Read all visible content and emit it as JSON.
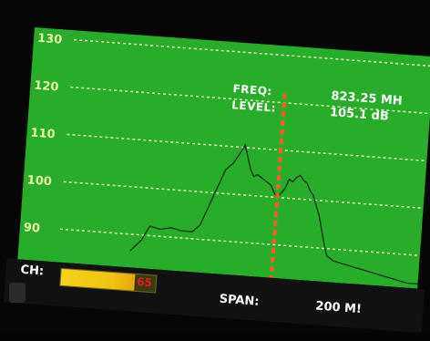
{
  "readout": {
    "freq_label": "FREQ:",
    "level_label": "LEVEL:",
    "freq_value": "823.25 MH",
    "level_value": "105.1 dB"
  },
  "channel": {
    "label": "CH:",
    "value": "65",
    "meter_fraction": 0.78
  },
  "span": {
    "label": "SPAN:",
    "value": "200 M!"
  },
  "colors": {
    "plot_background": "#27ad2a",
    "grid": "#f3f7c8",
    "trace": "#0b2a10",
    "marker": "#ff5a2a",
    "channel_meter": "#f3d21a",
    "channel_value": "#e21d1d"
  },
  "chart_data": {
    "type": "line",
    "title": "",
    "xlabel": "",
    "ylabel": "",
    "y_ticks": [
      "130",
      "120",
      "110",
      "100",
      "90"
    ],
    "ylim": [
      83,
      132
    ],
    "xlim": [
      0,
      1
    ],
    "grid": true,
    "marker_x": 0.59,
    "series": [
      {
        "x": [
          0.19,
          0.22,
          0.24,
          0.27,
          0.3,
          0.33,
          0.36,
          0.38,
          0.4,
          0.42,
          0.44,
          0.46,
          0.48,
          0.49,
          0.5,
          0.51,
          0.52,
          0.53,
          0.55,
          0.57,
          0.58,
          0.59,
          0.6,
          0.61,
          0.62,
          0.63,
          0.64,
          0.65,
          0.66,
          0.67,
          0.68,
          0.69,
          0.7,
          0.71,
          0.72,
          0.73,
          0.74,
          0.76,
          0.79,
          0.82,
          0.85,
          0.88,
          0.91,
          0.94,
          0.97,
          1.0
        ],
        "y": [
          86.5,
          89,
          92,
          91.5,
          92,
          91.5,
          91.5,
          93,
          97,
          101,
          105,
          106.5,
          109,
          110.5,
          108,
          105.5,
          104,
          104.5,
          103.5,
          102.5,
          101,
          100,
          101,
          102,
          104,
          103.5,
          104.5,
          105,
          104,
          103.5,
          102,
          101,
          99,
          97,
          94,
          91,
          88.5,
          87.5,
          87,
          86.5,
          86,
          85.5,
          85,
          84.5,
          84,
          84
        ]
      }
    ]
  }
}
